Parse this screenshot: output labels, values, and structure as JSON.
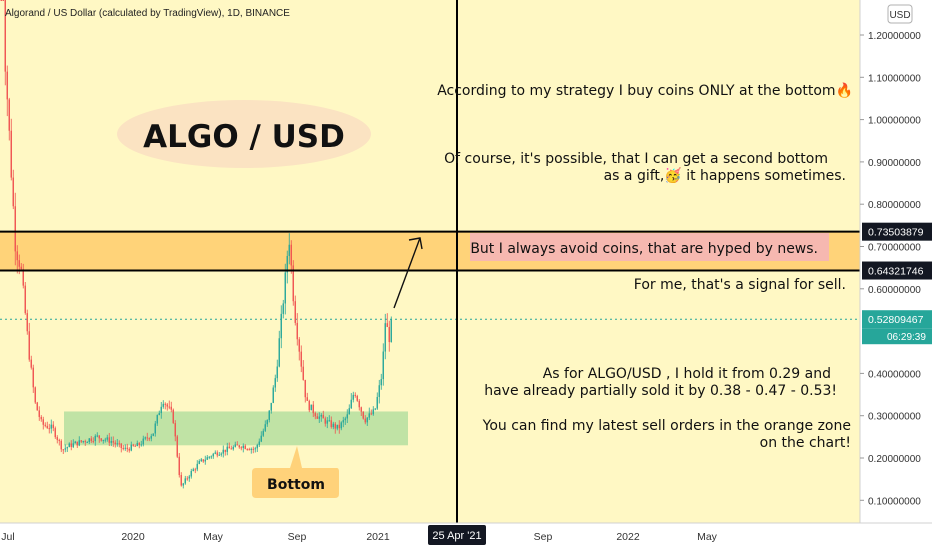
{
  "header": {
    "symbol_line": "Algorand / US Dollar (calculated by TradingView), 1D, BINANCE",
    "currency_button": "USD"
  },
  "colors": {
    "background": "#FFF8C4",
    "bull": "#26A69A",
    "bear": "#EF5350",
    "orange_zone": "#FFC966",
    "green_zone": "#B5DFA0",
    "title_ellipse": "#FBE3C2",
    "callout_bg": "#FFD27A",
    "pink_note_bg": "#F6B8B0"
  },
  "annotations": {
    "title": "ALGO / USD",
    "bottom_label": "Bottom",
    "note1": "According to my strategy I buy coins ONLY at the bottom🔥",
    "note2_line1": "Of course, it's possible, that I can get a second bottom",
    "note2_line2": "as a gift,🥳 it happens sometimes.",
    "note3": "But I always avoid coins, that are hyped by news.",
    "note4": "For me, that's a signal for sell.",
    "note5_line1": "As for ALGO/USD , I hold it from 0.29 and",
    "note5_line2": "have already partially sold it by 0.38 - 0.47 - 0.53!",
    "note6_line1": "You can find my latest sell orders in the orange zone",
    "note6_line2": "on the chart!"
  },
  "chart_data": {
    "type": "candlestick",
    "y_axis_ticks": [
      "1.20000000",
      "1.10000000",
      "1.00000000",
      "0.90000000",
      "0.80000000",
      "0.70000000",
      "0.60000000",
      "0.40000000",
      "0.30000000",
      "0.20000000",
      "0.10000000"
    ],
    "y_tick_values": [
      1.2,
      1.1,
      1.0,
      0.9,
      0.8,
      0.7,
      0.6,
      0.4,
      0.3,
      0.2,
      0.1
    ],
    "x_axis_ticks": [
      "Jul",
      "2020",
      "May",
      "Sep",
      "2021",
      "Sep",
      "2022",
      "May"
    ],
    "crosshair_date_label": "25 Apr '21",
    "price_labels": [
      {
        "value": 0.73503879,
        "text": "0.73503879",
        "style": "dark"
      },
      {
        "value": 0.64321746,
        "text": "0.64321746",
        "style": "dark"
      },
      {
        "value": 0.52809467,
        "text": "0.52809467",
        "style": "teal"
      }
    ],
    "countdown": "06:29:39",
    "last_price": 0.52809467,
    "zones": {
      "orange": [
        0.64321746,
        0.73503879
      ],
      "green": [
        0.23,
        0.31
      ]
    },
    "price_path": [
      [
        "2019-06-21",
        2.0
      ],
      [
        "2019-06-25",
        1.2
      ],
      [
        "2019-07-05",
        0.9
      ],
      [
        "2019-07-12",
        0.7
      ],
      [
        "2019-07-20",
        0.65
      ],
      [
        "2019-08-01",
        0.45
      ],
      [
        "2019-08-10",
        0.33
      ],
      [
        "2019-08-20",
        0.28
      ],
      [
        "2019-09-05",
        0.27
      ],
      [
        "2019-09-20",
        0.22
      ],
      [
        "2019-10-01",
        0.23
      ],
      [
        "2019-10-20",
        0.24
      ],
      [
        "2019-11-10",
        0.25
      ],
      [
        "2019-12-01",
        0.24
      ],
      [
        "2019-12-20",
        0.22
      ],
      [
        "2020-01-10",
        0.23
      ],
      [
        "2020-02-01",
        0.26
      ],
      [
        "2020-02-15",
        0.34
      ],
      [
        "2020-03-01",
        0.3
      ],
      [
        "2020-03-13",
        0.13
      ],
      [
        "2020-03-25",
        0.16
      ],
      [
        "2020-04-10",
        0.19
      ],
      [
        "2020-05-01",
        0.21
      ],
      [
        "2020-05-20",
        0.22
      ],
      [
        "2020-06-10",
        0.23
      ],
      [
        "2020-07-01",
        0.22
      ],
      [
        "2020-07-20",
        0.29
      ],
      [
        "2020-08-01",
        0.4
      ],
      [
        "2020-08-15",
        0.63
      ],
      [
        "2020-08-20",
        0.73
      ],
      [
        "2020-08-28",
        0.55
      ],
      [
        "2020-09-05",
        0.45
      ],
      [
        "2020-09-15",
        0.33
      ],
      [
        "2020-10-01",
        0.3
      ],
      [
        "2020-10-20",
        0.28
      ],
      [
        "2020-11-01",
        0.27
      ],
      [
        "2020-11-15",
        0.3
      ],
      [
        "2020-11-25",
        0.36
      ],
      [
        "2020-12-10",
        0.29
      ],
      [
        "2020-12-25",
        0.31
      ],
      [
        "2021-01-05",
        0.4
      ],
      [
        "2021-01-10",
        0.53
      ],
      [
        "2021-01-15",
        0.48
      ],
      [
        "2021-01-20",
        0.52809467
      ]
    ]
  }
}
